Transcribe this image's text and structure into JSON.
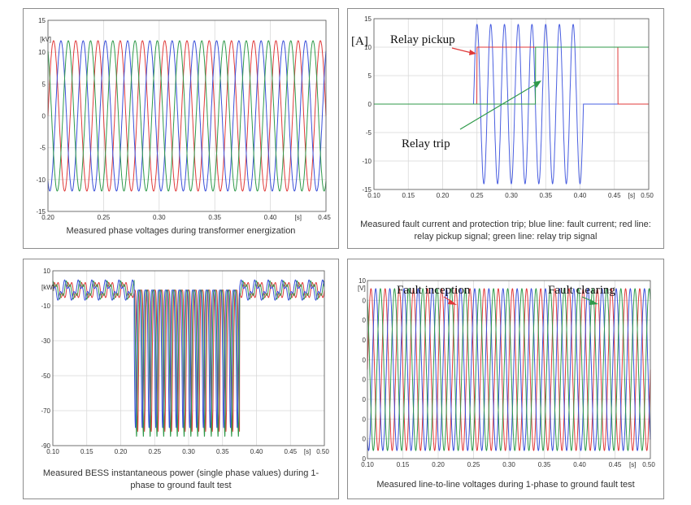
{
  "panels": [
    {
      "caption": "Measured phase voltages during transformer energization",
      "chart_data": {
        "type": "line",
        "ylabel": "[kV]",
        "xlabel": "[s]",
        "xlim": [
          0.2,
          0.45
        ],
        "ylim": [
          -15,
          15
        ],
        "xticks": [
          "0.20",
          "0.25",
          "0.30",
          "0.35",
          "0.40",
          "0.45"
        ],
        "xtick_values": [
          0.2,
          0.25,
          0.3,
          0.35,
          0.4,
          0.45
        ],
        "yticks": [
          "15",
          "10",
          "5",
          "0",
          "-5",
          "-10",
          "-15"
        ],
        "ytick_values": [
          15,
          10,
          5,
          0,
          -5,
          -10,
          -15
        ],
        "grid": true,
        "series": [
          {
            "color": "#e03a3a",
            "kind": "sine",
            "amplitude": 11.8,
            "frequency_hz": 50,
            "phase_deg": 0
          },
          {
            "color": "#3a4fd9",
            "kind": "sine",
            "amplitude": 11.8,
            "frequency_hz": 50,
            "phase_deg": -120
          },
          {
            "color": "#2f9a4a",
            "kind": "sine",
            "amplitude": 11.8,
            "frequency_hz": 50,
            "phase_deg": 120
          }
        ]
      }
    },
    {
      "caption": "Measured fault current and protection trip; blue line: fault current; red line: relay pickup signal; green line: relay trip signal",
      "annotations": [
        "Relay pickup",
        "Relay trip"
      ],
      "chart_data": {
        "type": "line",
        "ylabel": "[A]",
        "xlabel": "[s]",
        "xlim": [
          0.1,
          0.5
        ],
        "ylim": [
          -15,
          15
        ],
        "xticks": [
          "0.10",
          "0.15",
          "0.20",
          "0.25",
          "0.30",
          "0.35",
          "0.40",
          "0.45",
          "0.50"
        ],
        "xtick_values": [
          0.1,
          0.15,
          0.2,
          0.25,
          0.3,
          0.35,
          0.4,
          0.45,
          0.5
        ],
        "yticks": [
          "15",
          "10",
          "5",
          "0",
          "-5",
          "-10",
          "-15"
        ],
        "ytick_values": [
          15,
          10,
          5,
          0,
          -5,
          -10,
          -15
        ],
        "grid": true,
        "series": [
          {
            "name": "fault current",
            "color": "#4a5fe0",
            "kind": "burst",
            "amplitude": 14,
            "frequency_hz": 50,
            "start": 0.245,
            "end": 0.405
          },
          {
            "name": "relay pickup signal",
            "color": "#e03a3a",
            "kind": "step",
            "high": 10,
            "start": 0.25,
            "end": 0.455
          },
          {
            "name": "relay trip signal",
            "color": "#2f9a4a",
            "kind": "step",
            "high": 10,
            "start": 0.335,
            "end": 0.5
          }
        ]
      }
    },
    {
      "caption": "Measured BESS instantaneous power (single phase values) during 1-phase to ground fault test",
      "chart_data": {
        "type": "line",
        "ylabel": "[kW]",
        "xlabel": "[s]",
        "xlim": [
          0.1,
          0.5
        ],
        "ylim": [
          -90,
          10
        ],
        "xticks": [
          "0.10",
          "0.15",
          "0.20",
          "0.25",
          "0.30",
          "0.35",
          "0.40",
          "0.45",
          "0.50"
        ],
        "xtick_values": [
          0.1,
          0.15,
          0.2,
          0.25,
          0.3,
          0.35,
          0.4,
          0.45,
          0.5
        ],
        "yticks": [
          "10",
          "-10",
          "-30",
          "-50",
          "-70",
          "-90"
        ],
        "ytick_values": [
          10,
          -10,
          -30,
          -50,
          -70,
          -90
        ],
        "grid": true,
        "series": [
          {
            "color": "#e03a3a",
            "kind": "bess",
            "fault_start": 0.22,
            "fault_end": 0.375,
            "phase_deg": 0,
            "dip": -82
          },
          {
            "color": "#2f9a4a",
            "kind": "bess",
            "fault_start": 0.22,
            "fault_end": 0.375,
            "phase_deg": 60,
            "dip": -85
          },
          {
            "color": "#3a4fd9",
            "kind": "bess",
            "fault_start": 0.22,
            "fault_end": 0.375,
            "phase_deg": 120,
            "dip": -80
          }
        ]
      }
    },
    {
      "caption": "Measured line-to-line voltages during 1-phase to ground fault test",
      "annotations": [
        "Fault inception",
        "Fault clearing"
      ],
      "chart_data": {
        "type": "line",
        "ylabel": "[V]",
        "xlabel": "[s]",
        "xlim": [
          0.1,
          0.5
        ],
        "ylim": [
          -11,
          11
        ],
        "xticks": [
          "0.10",
          "0.15",
          "0.20",
          "0.25",
          "0.30",
          "0.35",
          "0.40",
          "0.45",
          "0.50"
        ],
        "xtick_values": [
          0.1,
          0.15,
          0.2,
          0.25,
          0.3,
          0.35,
          0.4,
          0.45,
          0.5
        ],
        "yticks": [
          "10",
          "0",
          "0",
          "0",
          "0",
          "0",
          "0",
          "0",
          "0",
          "0"
        ],
        "grid": true,
        "series": [
          {
            "color": "#e03a3a",
            "kind": "sine",
            "amplitude": 10,
            "frequency_hz": 50,
            "phase_deg": 0
          },
          {
            "color": "#3a4fd9",
            "kind": "sine",
            "amplitude": 10,
            "frequency_hz": 50,
            "phase_deg": -120
          },
          {
            "color": "#2f9a4a",
            "kind": "sine",
            "amplitude": 10,
            "frequency_hz": 50,
            "phase_deg": 120
          }
        ]
      }
    }
  ]
}
